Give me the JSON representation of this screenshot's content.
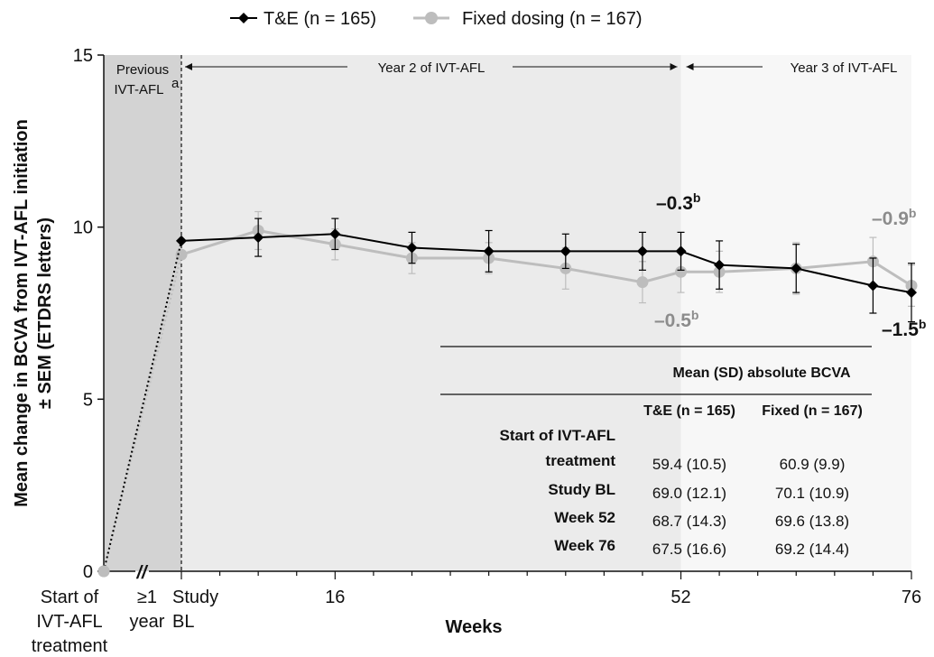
{
  "chart_data": {
    "type": "line",
    "ylabel": "Mean change in BCVA from IVT-AFL initiation ± SEM (ETDRS letters)",
    "ylabel_lines": [
      "Mean change in BCVA from IVT-AFL initiation",
      "± SEM (ETDRS letters)"
    ],
    "xlabel": "Weeks",
    "ylim": [
      0,
      15
    ],
    "yticks": [
      "0",
      "5",
      "10",
      "15"
    ],
    "xtick_labels": [
      {
        "lines": [
          "Start of",
          "IVT-AFL",
          "treatment"
        ]
      },
      {
        "lines": [
          "≥1",
          "year"
        ]
      },
      {
        "lines": [
          "Study",
          "BL"
        ]
      },
      {
        "lines": [
          "16"
        ]
      },
      {
        "lines": [
          "52"
        ]
      },
      {
        "lines": [
          "76"
        ]
      }
    ],
    "axis_break": "//",
    "regions": [
      {
        "label_lines": [
          "Previous",
          "IVT-AFL"
        ],
        "superscript": "a"
      },
      {
        "label": "Year 2 of IVT-AFL"
      },
      {
        "label": "Year 3 of IVT-AFL"
      }
    ],
    "weeks": [
      0,
      8,
      16,
      24,
      32,
      40,
      48,
      52,
      56,
      64,
      72,
      76
    ],
    "series": [
      {
        "name": "T&E (n = 165)",
        "color": "#000000",
        "marker": "diamond",
        "start_value": 0,
        "values": [
          9.6,
          9.7,
          9.8,
          9.4,
          9.3,
          9.3,
          9.3,
          9.3,
          8.9,
          8.8,
          8.3,
          8.1
        ],
        "sem": [
          0.4,
          0.55,
          0.45,
          0.45,
          0.6,
          0.5,
          0.55,
          0.55,
          0.7,
          0.7,
          0.8,
          0.85
        ]
      },
      {
        "name": "Fixed dosing (n = 167)",
        "color": "#bdbdbd",
        "marker": "circle",
        "start_value": 0,
        "values": [
          9.2,
          9.9,
          9.5,
          9.1,
          9.1,
          8.8,
          8.4,
          8.7,
          8.7,
          8.8,
          9.0,
          8.3
        ],
        "sem": [
          0.4,
          0.55,
          0.45,
          0.45,
          0.45,
          0.6,
          0.6,
          0.6,
          0.6,
          0.75,
          0.7,
          0.6
        ]
      }
    ],
    "annotations": [
      {
        "text": "–0.3",
        "sup": "b",
        "series": "T&E (n = 165)"
      },
      {
        "text": "–0.5",
        "sup": "b",
        "series": "Fixed dosing (n = 167)"
      },
      {
        "text": "–0.9",
        "sup": "b",
        "series": "Fixed dosing (n = 167)"
      },
      {
        "text": "–1.5",
        "sup": "b",
        "series": "T&E (n = 165)"
      }
    ],
    "inset_table": {
      "title": "Mean (SD) absolute BCVA",
      "columns": [
        "T&E (n = 165)",
        "Fixed (n = 167)"
      ],
      "rows": [
        {
          "label_lines": [
            "Start of IVT-AFL",
            "treatment"
          ],
          "values": [
            "59.4 (10.5)",
            "60.9 (9.9)"
          ]
        },
        {
          "label_lines": [
            "Study BL"
          ],
          "values": [
            "69.0 (12.1)",
            "70.1 (10.9)"
          ]
        },
        {
          "label_lines": [
            "Week 52"
          ],
          "values": [
            "68.7 (14.3)",
            "69.6 (13.8)"
          ]
        },
        {
          "label_lines": [
            "Week 76"
          ],
          "values": [
            "67.5 (16.6)",
            "69.2 (14.4)"
          ]
        }
      ]
    }
  }
}
